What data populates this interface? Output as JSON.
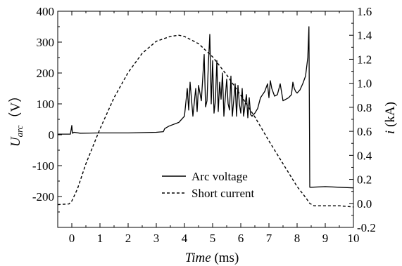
{
  "chart_data": {
    "type": "line",
    "x_axis": {
      "label_italic": "Time",
      "label_unit": " (ms)",
      "min": -0.5,
      "max": 10,
      "ticks": [
        0,
        1,
        2,
        3,
        4,
        5,
        6,
        7,
        8,
        9,
        10
      ]
    },
    "y_left": {
      "label_main": "U",
      "label_sub": "arc",
      "label_unit": "（V）",
      "min": -300,
      "max": 400,
      "ticks": [
        -300,
        -200,
        -100,
        0,
        100,
        200,
        300,
        400
      ],
      "tick_labels": [
        "",
        "-200",
        "-100",
        "0",
        "100",
        "200",
        "300",
        "400"
      ]
    },
    "y_right": {
      "label_italic": "i",
      "label_unit": " (kA)",
      "min": -0.2,
      "max": 1.6,
      "ticks": [
        -0.2,
        0,
        0.2,
        0.4,
        0.6,
        0.8,
        1.0,
        1.2,
        1.4,
        1.6
      ],
      "tick_labels": [
        "-0.2",
        "0.0",
        "0.2",
        "0.4",
        "0.6",
        "0.8",
        "1.0",
        "1.2",
        "1.4",
        "1.6"
      ]
    },
    "grid": false,
    "legend_position": "lower-center",
    "series": [
      {
        "name": "Arc voltage",
        "axis": "left",
        "style": "solid",
        "x": [
          -0.5,
          -0.05,
          0.0,
          0.02,
          0.08,
          0.3,
          1.0,
          2.0,
          3.0,
          3.25,
          3.3,
          3.45,
          3.8,
          4.0,
          4.1,
          4.15,
          4.2,
          4.3,
          4.4,
          4.45,
          4.5,
          4.6,
          4.7,
          4.75,
          4.8,
          4.85,
          4.9,
          4.95,
          5.0,
          5.05,
          5.1,
          5.15,
          5.2,
          5.25,
          5.3,
          5.35,
          5.4,
          5.5,
          5.55,
          5.6,
          5.65,
          5.7,
          5.8,
          5.85,
          5.9,
          5.95,
          6.0,
          6.05,
          6.1,
          6.2,
          6.25,
          6.3,
          6.35,
          6.4,
          6.5,
          6.6,
          6.7,
          6.85,
          6.95,
          7.0,
          7.05,
          7.1,
          7.2,
          7.3,
          7.4,
          7.5,
          7.6,
          7.7,
          7.8,
          7.85,
          7.9,
          7.95,
          8.0,
          8.1,
          8.2,
          8.3,
          8.38,
          8.42,
          8.44,
          8.45,
          8.5,
          9.0,
          9.5,
          10.0
        ],
        "y": [
          2,
          2,
          30,
          5,
          8,
          5,
          6,
          6,
          8,
          10,
          20,
          28,
          40,
          60,
          150,
          80,
          170,
          60,
          150,
          75,
          160,
          110,
          260,
          90,
          110,
          230,
          325,
          100,
          240,
          70,
          110,
          240,
          75,
          170,
          115,
          200,
          60,
          180,
          100,
          80,
          190,
          60,
          165,
          60,
          160,
          100,
          70,
          150,
          60,
          130,
          55,
          120,
          65,
          60,
          70,
          85,
          120,
          140,
          165,
          120,
          175,
          150,
          125,
          130,
          165,
          110,
          115,
          120,
          130,
          170,
          150,
          140,
          135,
          145,
          165,
          190,
          250,
          350,
          20,
          -170,
          -170,
          -168,
          -170,
          -172
        ]
      },
      {
        "name": "Short current",
        "axis": "right",
        "style": "dashed",
        "x": [
          -0.5,
          -0.1,
          0.0,
          0.2,
          0.5,
          1.0,
          1.5,
          2.0,
          2.5,
          3.0,
          3.5,
          3.8,
          4.0,
          4.5,
          5.0,
          5.5,
          6.0,
          6.5,
          7.0,
          7.5,
          8.0,
          8.3,
          8.45,
          8.6,
          9.0,
          9.5,
          10.0
        ],
        "y": [
          -0.01,
          -0.005,
          0.02,
          0.12,
          0.33,
          0.62,
          0.88,
          1.09,
          1.25,
          1.35,
          1.39,
          1.4,
          1.39,
          1.33,
          1.22,
          1.07,
          0.9,
          0.72,
          0.52,
          0.33,
          0.14,
          0.05,
          0.0,
          -0.02,
          -0.02,
          -0.02,
          -0.03
        ]
      }
    ]
  }
}
